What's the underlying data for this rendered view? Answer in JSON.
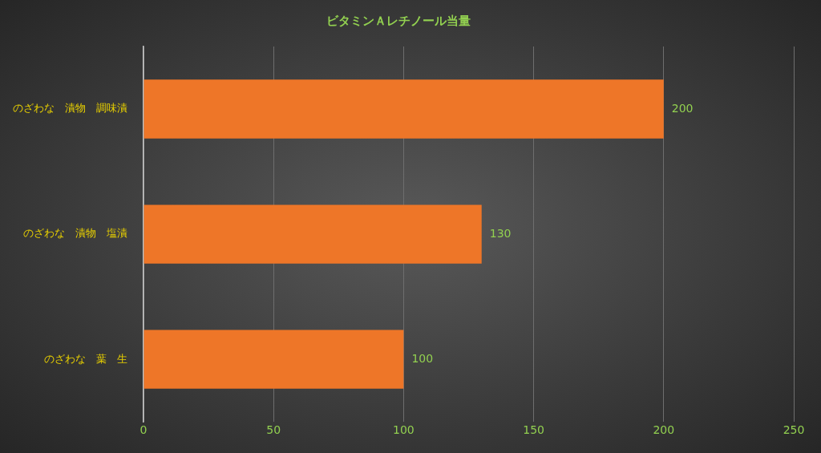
{
  "chart_data": {
    "type": "bar",
    "orientation": "horizontal",
    "title": "ビタミンＡレチノール当量",
    "categories": [
      "のざわな　漬物　調味漬",
      "のざわな　漬物　塩漬",
      "のざわな　葉　生"
    ],
    "values": [
      200,
      130,
      100
    ],
    "color": "#ee7628",
    "xlim": [
      0,
      250
    ],
    "xticks": [
      0,
      50,
      100,
      150,
      200,
      250
    ],
    "grid": "x",
    "data_labels": true,
    "legend": false
  }
}
